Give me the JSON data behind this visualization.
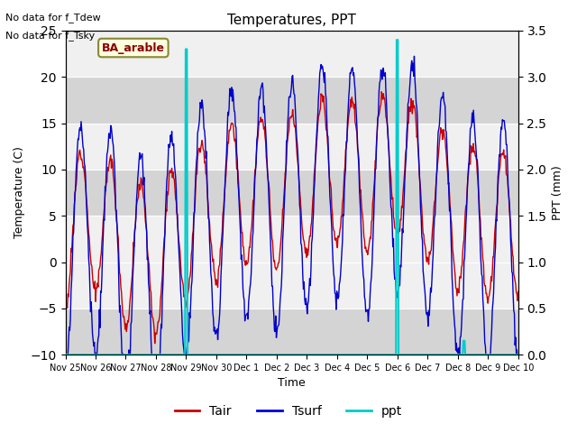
{
  "title": "Temperatures, PPT",
  "xlabel": "Time",
  "ylabel_left": "Temperature (C)",
  "ylabel_right": "PPT (mm)",
  "text_nodata1": "No data for f_Tdew",
  "text_nodata2": "No data for f_Tsky",
  "label_box": "BA_arable",
  "ylim_left": [
    -10,
    25
  ],
  "ylim_right": [
    0.0,
    3.5
  ],
  "yticks_left": [
    -10,
    -5,
    0,
    5,
    10,
    15,
    20,
    25
  ],
  "yticks_right": [
    0.0,
    0.5,
    1.0,
    1.5,
    2.0,
    2.5,
    3.0,
    3.5
  ],
  "legend_labels": [
    "Tair",
    "Tsurf",
    "ppt"
  ],
  "legend_colors": [
    "#cc0000",
    "#0000dd",
    "#00cccc"
  ],
  "tair_color": "#cc0000",
  "tsurf_color": "#0000cc",
  "ppt_color": "#00cccc",
  "plot_bg": "#d4d4d4",
  "white_band_color": "#f0f0f0",
  "xtick_labels": [
    "Nov 25",
    "Nov 26",
    "Nov 27",
    "Nov 28",
    "Nov 29",
    "Nov 30",
    "Dec 1",
    "Dec 2",
    "Dec 3",
    "Dec 4",
    "Dec 5",
    "Dec 6",
    "Dec 7",
    "Dec 8",
    "Dec 9",
    "Dec 10"
  ],
  "base_tair": [
    3,
    5,
    1,
    0,
    4,
    6,
    8,
    7,
    9,
    10,
    9,
    11,
    8,
    5,
    4,
    4
  ],
  "base_tsurf": [
    1,
    3,
    -1,
    -2,
    3,
    5,
    7,
    5,
    8,
    9,
    7,
    10,
    7,
    3,
    2,
    3
  ],
  "tair_amplitude": 8,
  "tsurf_amplitude": 13,
  "ppt_spike1_day": 4.0,
  "ppt_spike1_val": 3.3,
  "ppt_spike2_day": 11.0,
  "ppt_spike2_val": 3.4,
  "ppt_spike3_day": 13.2,
  "ppt_spike3_val": 0.15
}
